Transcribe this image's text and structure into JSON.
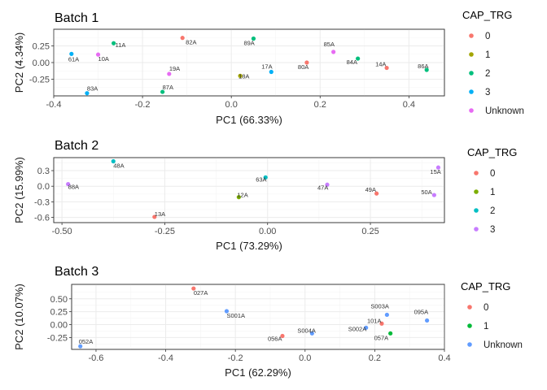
{
  "chart_data": [
    {
      "type": "scatter",
      "title": "Batch 1",
      "xlabel": "PC1 (66.33%)",
      "ylabel": "PC2 (4.34%)",
      "xlim": [
        -0.4,
        0.48
      ],
      "ylim": [
        -0.5,
        0.5
      ],
      "xticks": [
        -0.4,
        -0.2,
        0.0,
        0.2,
        0.4
      ],
      "xtick_labels": [
        "-0.4",
        "-0.2",
        "0.0",
        "0.2",
        "0.4"
      ],
      "yticks": [
        -0.25,
        0.0,
        0.25
      ],
      "ytick_labels": [
        "-0.25",
        "0.00",
        "0.25"
      ],
      "grid": true,
      "legend": {
        "title": "CAP_TRG",
        "placement": "right",
        "entries": [
          {
            "label": "0",
            "color": "#F8766D"
          },
          {
            "label": "1",
            "color": "#A3A500"
          },
          {
            "label": "2",
            "color": "#00BF7D"
          },
          {
            "label": "3",
            "color": "#00B0F6"
          },
          {
            "label": "Unknown",
            "color": "#E76BF3"
          }
        ]
      },
      "points": [
        {
          "label": "82A",
          "x": -0.11,
          "y": 0.37,
          "group": "0"
        },
        {
          "label": "89A",
          "x": 0.05,
          "y": 0.36,
          "group": "2"
        },
        {
          "label": "11A",
          "x": -0.265,
          "y": 0.29,
          "group": "2"
        },
        {
          "label": "61A",
          "x": -0.36,
          "y": 0.13,
          "group": "3"
        },
        {
          "label": "10A",
          "x": -0.3,
          "y": 0.12,
          "group": "Unknown"
        },
        {
          "label": "85A",
          "x": 0.23,
          "y": 0.16,
          "group": "Unknown"
        },
        {
          "label": "84A",
          "x": 0.285,
          "y": 0.06,
          "group": "2"
        },
        {
          "label": "80A",
          "x": 0.17,
          "y": 0.0,
          "group": "0"
        },
        {
          "label": "14A",
          "x": 0.35,
          "y": -0.08,
          "group": "0"
        },
        {
          "label": "86A",
          "x": 0.44,
          "y": -0.11,
          "group": "2"
        },
        {
          "label": "17A",
          "x": 0.09,
          "y": -0.14,
          "group": "3"
        },
        {
          "label": "19A",
          "x": -0.14,
          "y": -0.17,
          "group": "Unknown"
        },
        {
          "label": "18A",
          "x": 0.02,
          "y": -0.2,
          "group": "1"
        },
        {
          "label": "87A",
          "x": -0.155,
          "y": -0.44,
          "group": "2"
        },
        {
          "label": "83A",
          "x": -0.325,
          "y": -0.46,
          "group": "3"
        }
      ]
    },
    {
      "type": "scatter",
      "title": "Batch 2",
      "xlabel": "PC1 (73.29%)",
      "ylabel": "PC2 (15.99%)",
      "xlim": [
        -0.52,
        0.43
      ],
      "ylim": [
        -0.7,
        0.55
      ],
      "xticks": [
        -0.5,
        -0.25,
        0.0,
        0.25
      ],
      "xtick_labels": [
        "-0.50",
        "-0.25",
        "0.00",
        "0.25"
      ],
      "yticks": [
        -0.6,
        -0.3,
        0.0,
        0.3
      ],
      "ytick_labels": [
        "-0.6",
        "-0.3",
        "0.0",
        "0.3"
      ],
      "grid": true,
      "legend": {
        "title": "CAP_TRG",
        "placement": "right",
        "entries": [
          {
            "label": "0",
            "color": "#F8766D"
          },
          {
            "label": "1",
            "color": "#7CAE00"
          },
          {
            "label": "2",
            "color": "#00BFC4"
          },
          {
            "label": "3",
            "color": "#C77CFF"
          }
        ]
      },
      "points": [
        {
          "label": "48A",
          "x": -0.375,
          "y": 0.48,
          "group": "2"
        },
        {
          "label": "15A",
          "x": 0.415,
          "y": 0.36,
          "group": "3"
        },
        {
          "label": "63A",
          "x": -0.005,
          "y": 0.17,
          "group": "2"
        },
        {
          "label": "88A",
          "x": -0.485,
          "y": 0.04,
          "group": "3"
        },
        {
          "label": "47A",
          "x": 0.145,
          "y": 0.03,
          "group": "3"
        },
        {
          "label": "49A",
          "x": 0.265,
          "y": -0.14,
          "group": "0"
        },
        {
          "label": "50A",
          "x": 0.405,
          "y": -0.17,
          "group": "3"
        },
        {
          "label": "12A",
          "x": -0.07,
          "y": -0.21,
          "group": "1"
        },
        {
          "label": "13A",
          "x": -0.275,
          "y": -0.59,
          "group": "0"
        }
      ]
    },
    {
      "type": "scatter",
      "title": "Batch 3",
      "xlabel": "PC1 (62.29%)",
      "ylabel": "PC2 (10.07%)",
      "xlim": [
        -0.67,
        0.4
      ],
      "ylim": [
        -0.48,
        0.78
      ],
      "xticks": [
        -0.6,
        -0.4,
        -0.2,
        0.0,
        0.2,
        0.4
      ],
      "xtick_labels": [
        "-0.6",
        "-0.4",
        "-0.2",
        "0.0",
        "0.2",
        "0.4"
      ],
      "yticks": [
        -0.25,
        0.0,
        0.25,
        0.5
      ],
      "ytick_labels": [
        "-0.25",
        "0.00",
        "0.25",
        "0.50"
      ],
      "grid": true,
      "legend": {
        "title": "CAP_TRG",
        "placement": "right",
        "entries": [
          {
            "label": "0",
            "color": "#F8766D"
          },
          {
            "label": "1",
            "color": "#00BA38"
          },
          {
            "label": "Unknown",
            "color": "#619CFF"
          }
        ]
      },
      "points": [
        {
          "label": "027A",
          "x": -0.32,
          "y": 0.7,
          "group": "0"
        },
        {
          "label": "S001A",
          "x": -0.225,
          "y": 0.26,
          "group": "Unknown"
        },
        {
          "label": "S003A",
          "x": 0.235,
          "y": 0.19,
          "group": "Unknown"
        },
        {
          "label": "095A",
          "x": 0.35,
          "y": 0.08,
          "group": "Unknown"
        },
        {
          "label": "101A",
          "x": 0.22,
          "y": 0.02,
          "group": "0"
        },
        {
          "label": "S002A",
          "x": 0.175,
          "y": -0.06,
          "group": "Unknown"
        },
        {
          "label": "057A",
          "x": 0.245,
          "y": -0.17,
          "group": "1"
        },
        {
          "label": "S004A",
          "x": 0.02,
          "y": -0.17,
          "group": "Unknown"
        },
        {
          "label": "056A",
          "x": -0.065,
          "y": -0.22,
          "group": "0"
        },
        {
          "label": "052A",
          "x": -0.645,
          "y": -0.42,
          "group": "Unknown"
        }
      ]
    }
  ]
}
